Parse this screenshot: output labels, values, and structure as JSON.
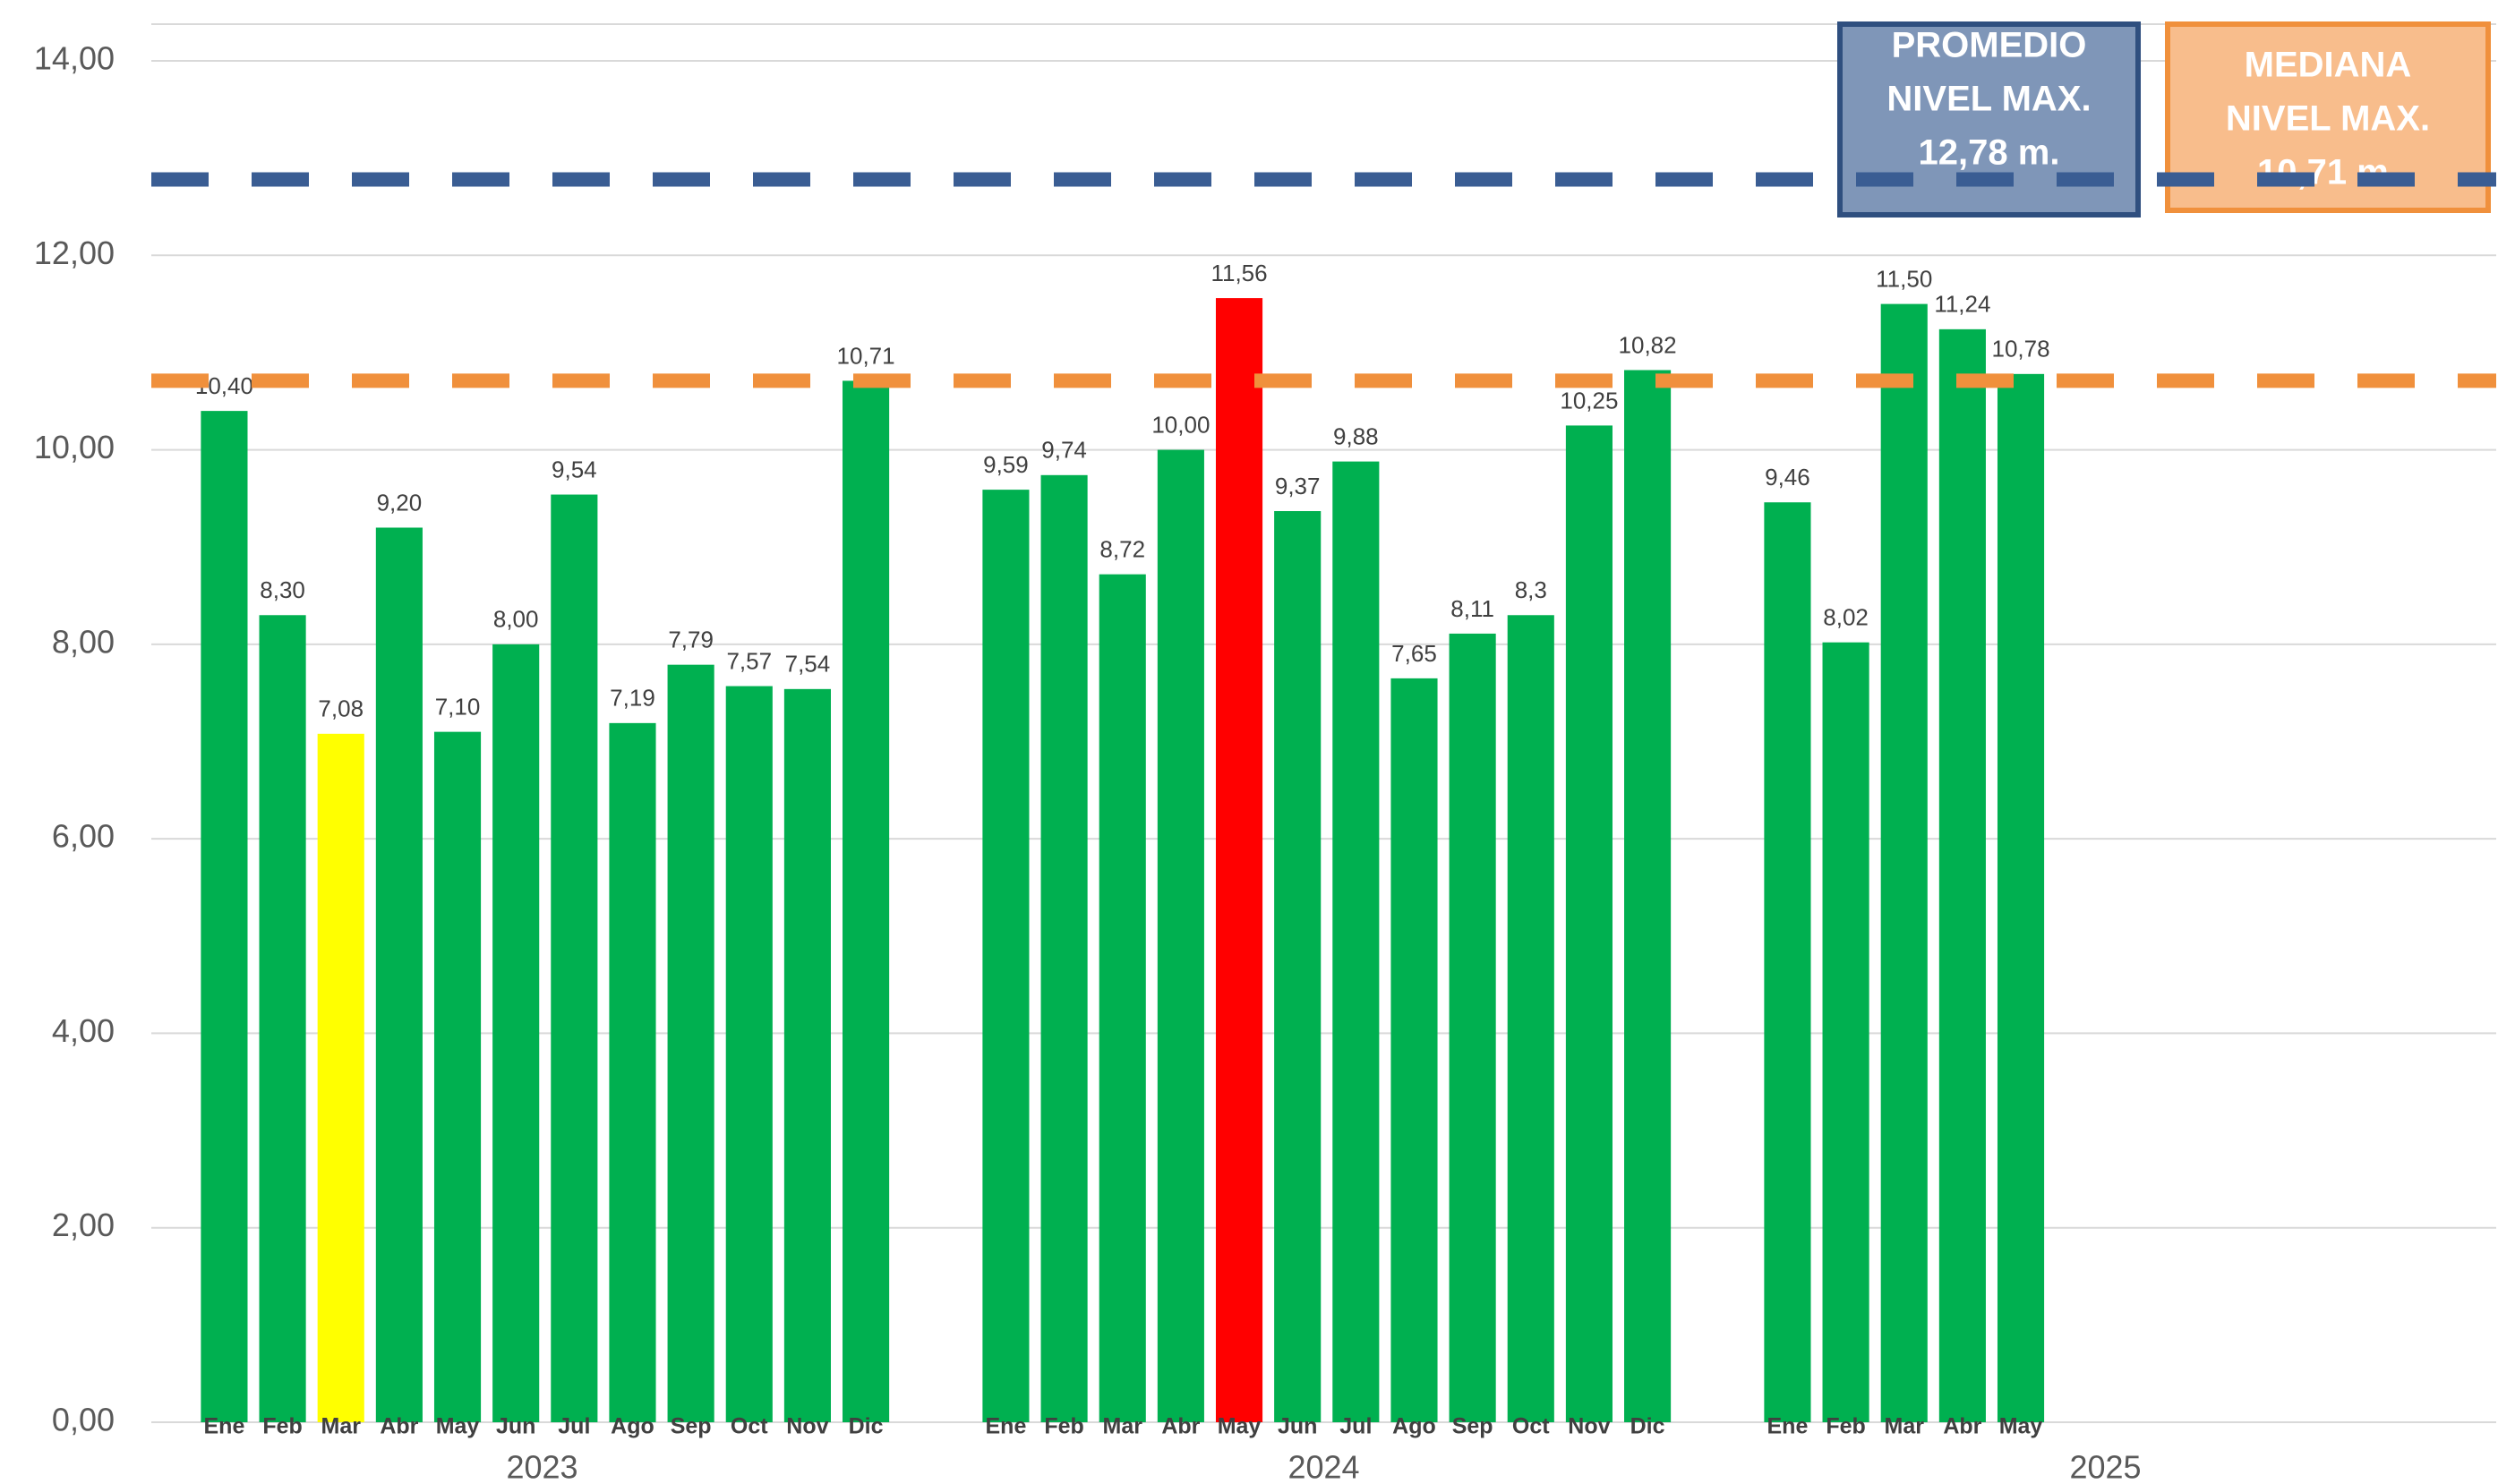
{
  "chart_data": {
    "type": "bar",
    "ylim": [
      0,
      14
    ],
    "yticks": [
      {
        "value": 0,
        "label": "0,00"
      },
      {
        "value": 2,
        "label": "2,00"
      },
      {
        "value": 4,
        "label": "4,00"
      },
      {
        "value": 6,
        "label": "6,00"
      },
      {
        "value": 8,
        "label": "8,00"
      },
      {
        "value": 10,
        "label": "10,00"
      },
      {
        "value": 12,
        "label": "12,00"
      },
      {
        "value": 14,
        "label": "14,00"
      }
    ],
    "grid": true,
    "groups": [
      {
        "name": "2023",
        "categories": [
          "Ene",
          "Feb",
          "Mar",
          "Abr",
          "May",
          "Jun",
          "Jul",
          "Ago",
          "Sep",
          "Oct",
          "Nov",
          "Dic"
        ],
        "values": [
          10.4,
          8.3,
          7.08,
          9.2,
          7.1,
          8.0,
          9.54,
          7.19,
          7.79,
          7.57,
          7.54,
          10.71
        ],
        "value_labels": [
          "10,40",
          "8,30",
          "7,08",
          "9,20",
          "7,10",
          "8,00",
          "9,54",
          "7,19",
          "7,79",
          "7,57",
          "7,54",
          "10,71"
        ],
        "colors": [
          "#00b050",
          "#00b050",
          "#ffff00",
          "#00b050",
          "#00b050",
          "#00b050",
          "#00b050",
          "#00b050",
          "#00b050",
          "#00b050",
          "#00b050",
          "#00b050"
        ]
      },
      {
        "name": "2024",
        "categories": [
          "Ene",
          "Feb",
          "Mar",
          "Abr",
          "May",
          "Jun",
          "Jul",
          "Ago",
          "Sep",
          "Oct",
          "Nov",
          "Dic"
        ],
        "values": [
          9.59,
          9.74,
          8.72,
          10.0,
          11.56,
          9.37,
          9.88,
          7.65,
          8.11,
          8.3,
          10.25,
          10.82
        ],
        "value_labels": [
          "9,59",
          "9,74",
          "8,72",
          "10,00",
          "11,56",
          "9,37",
          "9,88",
          "7,65",
          "8,11",
          "8,3",
          "10,25",
          "10,82"
        ],
        "colors": [
          "#00b050",
          "#00b050",
          "#00b050",
          "#00b050",
          "#ff0000",
          "#00b050",
          "#00b050",
          "#00b050",
          "#00b050",
          "#00b050",
          "#00b050",
          "#00b050"
        ]
      },
      {
        "name": "2025",
        "categories": [
          "Ene",
          "Feb",
          "Mar",
          "Abr",
          "May"
        ],
        "values": [
          9.46,
          8.02,
          11.5,
          11.24,
          10.78
        ],
        "value_labels": [
          "9,46",
          "8,02",
          "11,50",
          "11,24",
          "10,78"
        ],
        "colors": [
          "#00b050",
          "#00b050",
          "#00b050",
          "#00b050",
          "#00b050"
        ]
      }
    ],
    "reference_lines": [
      {
        "value": 12.78,
        "color": "#3a5d93",
        "box_fill": "#7f96b8",
        "label": [
          "PROMEDIO",
          "NIVEL MAX.",
          "12,78 m."
        ]
      },
      {
        "value": 10.71,
        "color": "#f0903c",
        "box_fill": "#f8bd8c",
        "label": [
          "MEDIANA",
          "NIVEL MAX.",
          "10,71 m."
        ]
      }
    ]
  }
}
